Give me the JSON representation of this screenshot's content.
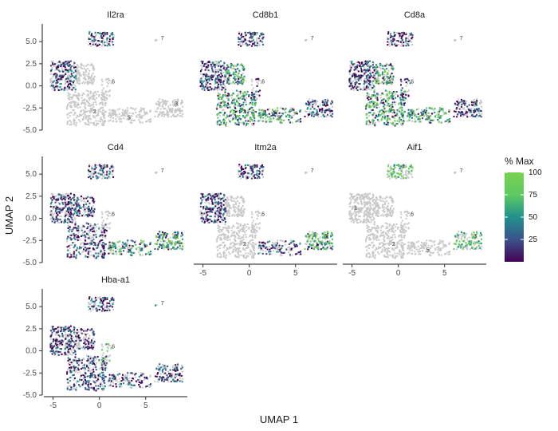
{
  "chart_data": {
    "type": "scatter",
    "xlabel": "UMAP 1",
    "ylabel": "UMAP 2",
    "xlim": [
      -6,
      9.5
    ],
    "ylim": [
      -5,
      7
    ],
    "xticks": [
      "-5",
      "0",
      "5"
    ],
    "xtick_values": [
      -5,
      0,
      5
    ],
    "yticks": [
      "5.0",
      "2.5",
      "0.0",
      "-2.5",
      "-5.0"
    ],
    "ytick_values": [
      5.0,
      2.5,
      0.0,
      -2.5,
      -5.0
    ],
    "background_color": "#c8c8c8",
    "colorscale": [
      "#440154",
      "#3b528b",
      "#21918c",
      "#5ec962",
      "#7ad151"
    ],
    "legend": {
      "title": "% Max",
      "placement": "right",
      "ticks": [
        "100",
        "75",
        "50",
        "25"
      ],
      "tick_values": [
        100,
        75,
        50,
        25
      ]
    },
    "clusters": [
      {
        "label": "1",
        "x": -4.6,
        "y": 1.0
      },
      {
        "label": "2",
        "x": -0.5,
        "y": -3.1
      },
      {
        "label": "3",
        "x": 8.3,
        "y": -2.2
      },
      {
        "label": "4",
        "x": 0.5,
        "y": 5.7
      },
      {
        "label": "5",
        "x": 3.2,
        "y": -3.8
      },
      {
        "label": "6",
        "x": 1.5,
        "y": 0.3
      },
      {
        "label": "7",
        "x": 6.8,
        "y": 5.2
      }
    ],
    "panels": [
      {
        "gene": "Il2ra",
        "expressing": [
          "4",
          "1"
        ],
        "hot": []
      },
      {
        "gene": "Cd8b1",
        "expressing": [
          "1",
          "2",
          "5",
          "3",
          "6",
          "4"
        ],
        "hot": [
          "5",
          "2"
        ]
      },
      {
        "gene": "Cd8a",
        "expressing": [
          "1",
          "2",
          "5",
          "3",
          "6",
          "4"
        ],
        "hot": [
          "5",
          "2"
        ]
      },
      {
        "gene": "Cd4",
        "expressing": [
          "1",
          "2",
          "5",
          "3",
          "4"
        ],
        "hot": [
          "5",
          "3"
        ]
      },
      {
        "gene": "Itm2a",
        "expressing": [
          "1",
          "3",
          "5",
          "4"
        ],
        "hot": [
          "3"
        ]
      },
      {
        "gene": "Aif1",
        "expressing": [],
        "hot": [
          "4",
          "3"
        ]
      },
      {
        "gene": "Hba-a1",
        "expressing": [
          "1",
          "2",
          "5",
          "3",
          "4",
          "7"
        ],
        "hot": [
          "6"
        ]
      }
    ]
  }
}
